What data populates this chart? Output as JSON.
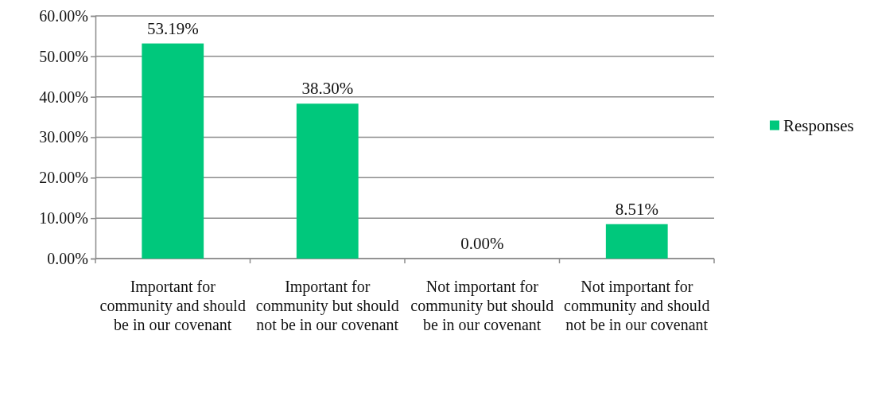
{
  "chart_data": {
    "type": "bar",
    "categories": [
      "Important for community and should be in our covenant",
      "Important for community but should not be in our covenant",
      "Not important for community but should be in our covenant",
      "Not important for community and should not be in our covenant"
    ],
    "series": [
      {
        "name": "Responses",
        "color": "#00c87c",
        "values": [
          53.19,
          38.3,
          0.0,
          8.51
        ],
        "value_labels": [
          "53.19%",
          "38.30%",
          "0.00%",
          "8.51%"
        ]
      }
    ],
    "ylim": [
      0,
      60
    ],
    "yticks": [
      {
        "value": 0,
        "label": "0.00%"
      },
      {
        "value": 10,
        "label": "10.00%"
      },
      {
        "value": 20,
        "label": "20.00%"
      },
      {
        "value": 30,
        "label": "30.00%"
      },
      {
        "value": 40,
        "label": "40.00%"
      },
      {
        "value": 50,
        "label": "50.00%"
      },
      {
        "value": 60,
        "label": "60.00%"
      }
    ],
    "grid": "y",
    "legend": "right"
  }
}
